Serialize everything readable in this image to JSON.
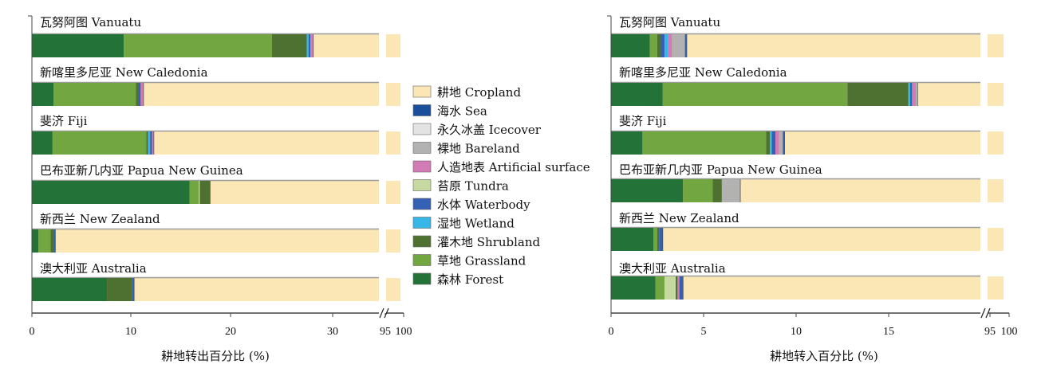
{
  "colors": {
    "cropland": "#fbe7b5",
    "sea": "#1a4f9c",
    "icecover": "#e3e3e3",
    "bareland": "#b2b2b2",
    "artificial": "#d27bb5",
    "tundra": "#c6d9a0",
    "waterbody": "#3461b3",
    "wetland": "#36b7e8",
    "shrubland": "#4e7132",
    "grassland": "#72a641",
    "forest": "#237339"
  },
  "legend": [
    {
      "key": "cropland",
      "label": "耕地 Cropland"
    },
    {
      "key": "sea",
      "label": "海水 Sea"
    },
    {
      "key": "icecover",
      "label": "永久冰盖 Icecover"
    },
    {
      "key": "bareland",
      "label": "裸地 Bareland"
    },
    {
      "key": "artificial",
      "label": "人造地表 Artificial surface"
    },
    {
      "key": "tundra",
      "label": "苔原 Tundra"
    },
    {
      "key": "waterbody",
      "label": "水体 Waterbody"
    },
    {
      "key": "wetland",
      "label": "湿地 Wetland"
    },
    {
      "key": "shrubland",
      "label": "灌木地 Shrubland"
    },
    {
      "key": "grassland",
      "label": "草地 Grassland"
    },
    {
      "key": "forest",
      "label": "森林 Forest"
    }
  ],
  "chart_data": [
    {
      "type": "bar",
      "orientation": "horizontal",
      "stacked": true,
      "xlabel": "耕地转出百分比 (%)",
      "xticks": [
        "0",
        "10",
        "20",
        "30",
        "95",
        "100"
      ],
      "xlim_main": [
        0,
        37
      ],
      "axis_break": true,
      "xlim_break": [
        95,
        100
      ],
      "categories": [
        "瓦努阿图 Vanuatu",
        "新喀里多尼亚 New Caledonia",
        "斐济 Fiji",
        "巴布亚新几内亚 Papua New Guinea",
        "新西兰 New Zealand",
        "澳大利亚 Australia"
      ],
      "rows": [
        [
          [
            "forest",
            9.8
          ],
          [
            "grassland",
            15.8
          ],
          [
            "shrubland",
            3.7
          ],
          [
            "wetland",
            0.2
          ],
          [
            "waterbody",
            0.2
          ],
          [
            "artificial",
            0.3
          ],
          [
            "cropland",
            70.0
          ]
        ],
        [
          [
            "forest",
            2.3
          ],
          [
            "grassland",
            8.8
          ],
          [
            "shrubland",
            0.3
          ],
          [
            "waterbody",
            0.2
          ],
          [
            "artificial",
            0.3
          ],
          [
            "cropland",
            88.1
          ]
        ],
        [
          [
            "forest",
            2.2
          ],
          [
            "grassland",
            10.0
          ],
          [
            "shrubland",
            0.2
          ],
          [
            "wetland",
            0.2
          ],
          [
            "waterbody",
            0.2
          ],
          [
            "artificial",
            0.2
          ],
          [
            "cropland",
            87.0
          ]
        ],
        [
          [
            "forest",
            16.8
          ],
          [
            "grassland",
            1.0
          ],
          [
            "tundra",
            0.1
          ],
          [
            "shrubland",
            1.1
          ],
          [
            "cropland",
            81.0
          ]
        ],
        [
          [
            "forest",
            0.7
          ],
          [
            "grassland",
            1.3
          ],
          [
            "shrubland",
            0.3
          ],
          [
            "waterbody",
            0.2
          ],
          [
            "cropland",
            97.5
          ]
        ],
        [
          [
            "forest",
            8.0
          ],
          [
            "shrubland",
            2.7
          ],
          [
            "waterbody",
            0.2
          ],
          [
            "cropland",
            89.1
          ]
        ]
      ]
    },
    {
      "type": "bar",
      "orientation": "horizontal",
      "stacked": true,
      "xlabel": "耕地转入百分比 (%)",
      "xticks": [
        "0",
        "5",
        "10",
        "15",
        "95",
        "100"
      ],
      "xlim_main": [
        0,
        20
      ],
      "axis_break": true,
      "xlim_break": [
        95,
        100
      ],
      "categories": [
        "瓦努阿图 Vanuatu",
        "新喀里多尼亚 New Caledonia",
        "斐济 Fiji",
        "巴布亚新几内亚 Papua New Guinea",
        "新西兰 New Zealand",
        "澳大利亚 Australia"
      ],
      "rows": [
        [
          [
            "forest",
            2.1
          ],
          [
            "grassland",
            0.4
          ],
          [
            "shrubland",
            0.2
          ],
          [
            "waterbody",
            0.2
          ],
          [
            "wetland",
            0.2
          ],
          [
            "artificial",
            0.2
          ],
          [
            "bareland",
            0.7
          ],
          [
            "waterbody",
            0.1
          ],
          [
            "cropland",
            95.9
          ]
        ],
        [
          [
            "forest",
            2.8
          ],
          [
            "grassland",
            10.0
          ],
          [
            "shrubland",
            3.3
          ],
          [
            "wetland",
            0.1
          ],
          [
            "waterbody",
            0.1
          ],
          [
            "artificial",
            0.2
          ],
          [
            "bareland",
            0.1
          ],
          [
            "cropland",
            83.4
          ]
        ],
        [
          [
            "forest",
            1.7
          ],
          [
            "grassland",
            6.7
          ],
          [
            "shrubland",
            0.2
          ],
          [
            "wetland",
            0.1
          ],
          [
            "waterbody",
            0.2
          ],
          [
            "artificial",
            0.2
          ],
          [
            "bareland",
            0.2
          ],
          [
            "waterbody",
            0.1
          ],
          [
            "cropland",
            90.6
          ]
        ],
        [
          [
            "forest",
            3.9
          ],
          [
            "grassland",
            1.6
          ],
          [
            "shrubland",
            0.5
          ],
          [
            "bareland",
            1.0
          ],
          [
            "cropland",
            93.0
          ]
        ],
        [
          [
            "forest",
            2.3
          ],
          [
            "grassland",
            0.2
          ],
          [
            "shrubland",
            0.1
          ],
          [
            "waterbody",
            0.2
          ],
          [
            "cropland",
            97.2
          ]
        ],
        [
          [
            "forest",
            2.4
          ],
          [
            "grassland",
            0.5
          ],
          [
            "tundra",
            0.6
          ],
          [
            "shrubland",
            0.1
          ],
          [
            "artificial",
            0.1
          ],
          [
            "waterbody",
            0.2
          ],
          [
            "cropland",
            96.1
          ]
        ]
      ]
    }
  ]
}
